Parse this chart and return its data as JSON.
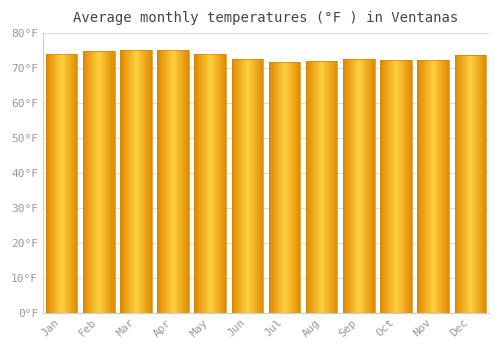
{
  "title": "Average monthly temperatures (°F ) in Ventanas",
  "months": [
    "Jan",
    "Feb",
    "Mar",
    "Apr",
    "May",
    "Jun",
    "Jul",
    "Aug",
    "Sep",
    "Oct",
    "Nov",
    "Dec"
  ],
  "values": [
    74.0,
    74.8,
    75.2,
    75.3,
    74.0,
    72.5,
    71.8,
    72.0,
    72.7,
    72.4,
    72.3,
    73.8
  ],
  "bar_color_left": "#E08800",
  "bar_color_center": "#FFD040",
  "bar_color_right": "#E08800",
  "background_color": "#FFFFFF",
  "grid_color": "#DDDDDD",
  "text_color": "#999999",
  "ylim": [
    0,
    80
  ],
  "yticks": [
    0,
    10,
    20,
    30,
    40,
    50,
    60,
    70,
    80
  ],
  "title_fontsize": 10,
  "tick_fontsize": 8,
  "bar_width": 0.85
}
